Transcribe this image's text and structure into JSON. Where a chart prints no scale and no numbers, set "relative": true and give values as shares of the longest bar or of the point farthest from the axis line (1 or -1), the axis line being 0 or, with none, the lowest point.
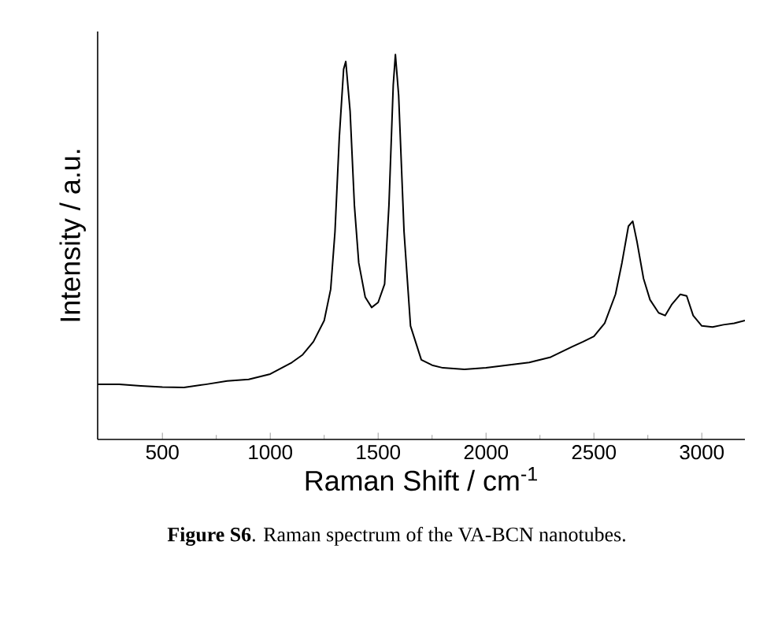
{
  "chart_data": {
    "type": "line",
    "relative": true,
    "xlabel": "Raman Shift / cm$^{-1}$",
    "ylabel": "Intensity / a.u.",
    "xlim": [
      200,
      3200
    ],
    "xticks": [
      500,
      1000,
      1500,
      2000,
      2500,
      3000
    ],
    "annotations": [
      "**Figure S6**. Raman spectrum of the VA-BCN nanotubes."
    ],
    "series": [
      {
        "color": "#000000",
        "x": [
          200,
          300,
          400,
          500,
          600,
          700,
          800,
          900,
          1000,
          1100,
          1150,
          1200,
          1250,
          1280,
          1300,
          1320,
          1340,
          1350,
          1370,
          1390,
          1410,
          1440,
          1470,
          1500,
          1530,
          1550,
          1570,
          1580,
          1595,
          1620,
          1650,
          1700,
          1750,
          1800,
          1900,
          2000,
          2100,
          2200,
          2300,
          2400,
          2450,
          2500,
          2550,
          2600,
          2630,
          2660,
          2680,
          2700,
          2730,
          2760,
          2800,
          2830,
          2860,
          2900,
          2930,
          2960,
          3000,
          3050,
          3100,
          3150,
          3200
        ],
        "values": [
          0.143,
          0.143,
          0.139,
          0.136,
          0.135,
          0.143,
          0.152,
          0.156,
          0.17,
          0.2,
          0.22,
          0.254,
          0.309,
          0.39,
          0.54,
          0.785,
          0.962,
          0.982,
          0.853,
          0.608,
          0.459,
          0.37,
          0.343,
          0.356,
          0.404,
          0.608,
          0.921,
          1.0,
          0.894,
          0.54,
          0.295,
          0.207,
          0.193,
          0.186,
          0.182,
          0.186,
          0.193,
          0.2,
          0.214,
          0.241,
          0.254,
          0.268,
          0.302,
          0.377,
          0.459,
          0.554,
          0.567,
          0.513,
          0.418,
          0.363,
          0.329,
          0.322,
          0.35,
          0.377,
          0.373,
          0.322,
          0.295,
          0.292,
          0.298,
          0.302,
          0.309
        ]
      }
    ]
  }
}
